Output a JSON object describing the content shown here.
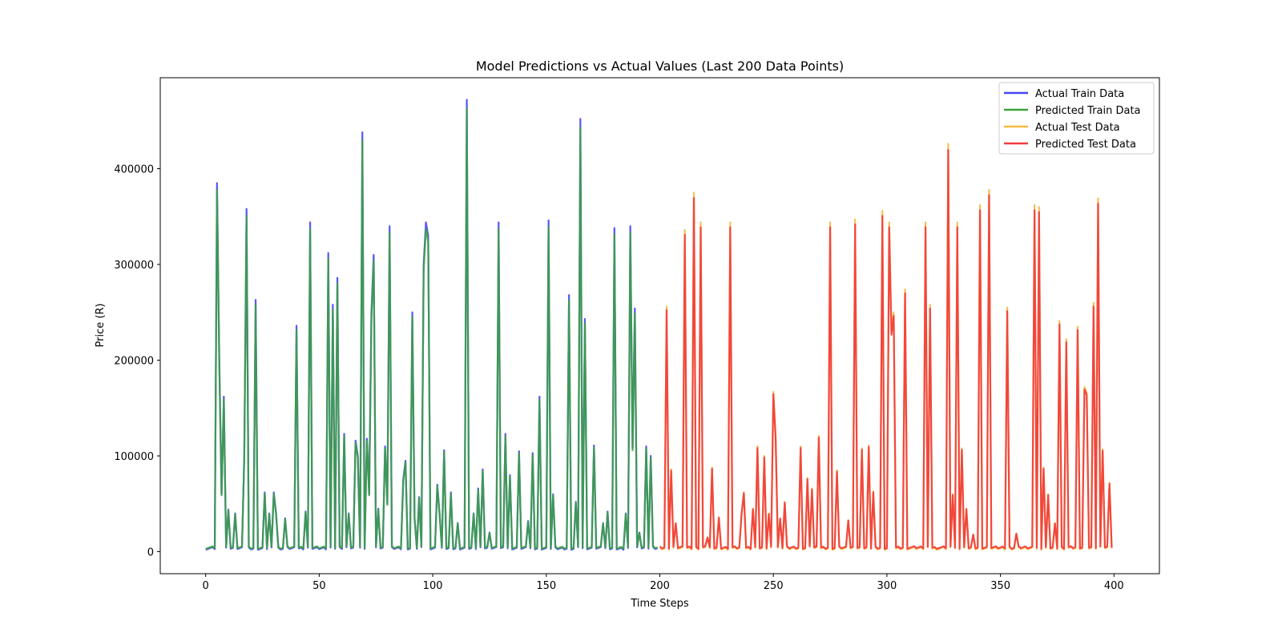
{
  "chart_data": {
    "type": "line",
    "title": "Model Predictions vs Actual Values (Last 200 Data Points)",
    "xlabel": "Time Steps",
    "ylabel": "Price (R)",
    "xlim": [
      -20,
      420
    ],
    "ylim": [
      -23000,
      495000
    ],
    "xticks": [
      0,
      50,
      100,
      150,
      200,
      250,
      300,
      350,
      400
    ],
    "yticks": [
      0,
      100000,
      200000,
      300000,
      400000
    ],
    "grid": false,
    "legend": "top-right",
    "train_peaks": [
      [
        5,
        385000
      ],
      [
        6,
        200000
      ],
      [
        7,
        60000
      ],
      [
        8,
        162000
      ],
      [
        10,
        44000
      ],
      [
        13,
        40000
      ],
      [
        17,
        100000
      ],
      [
        18,
        358000
      ],
      [
        22,
        263000
      ],
      [
        26,
        62000
      ],
      [
        28,
        40000
      ],
      [
        30,
        62000
      ],
      [
        31,
        40000
      ],
      [
        35,
        35000
      ],
      [
        40,
        236000
      ],
      [
        44,
        42000
      ],
      [
        46,
        344000
      ],
      [
        54,
        312000
      ],
      [
        56,
        258000
      ],
      [
        58,
        286000
      ],
      [
        61,
        123000
      ],
      [
        63,
        40000
      ],
      [
        66,
        116000
      ],
      [
        67,
        100000
      ],
      [
        69,
        438000
      ],
      [
        71,
        118000
      ],
      [
        72,
        60000
      ],
      [
        73,
        250000
      ],
      [
        74,
        310000
      ],
      [
        76,
        45000
      ],
      [
        79,
        110000
      ],
      [
        80,
        50000
      ],
      [
        81,
        340000
      ],
      [
        87,
        75000
      ],
      [
        88,
        95000
      ],
      [
        91,
        250000
      ],
      [
        92,
        35000
      ],
      [
        94,
        57000
      ],
      [
        96,
        300000
      ],
      [
        97,
        344000
      ],
      [
        98,
        330000
      ],
      [
        102,
        70000
      ],
      [
        103,
        40000
      ],
      [
        105,
        106000
      ],
      [
        108,
        62000
      ],
      [
        111,
        30000
      ],
      [
        115,
        472000
      ],
      [
        118,
        40000
      ],
      [
        120,
        66000
      ],
      [
        122,
        86000
      ],
      [
        125,
        20000
      ],
      [
        129,
        344000
      ],
      [
        132,
        123000
      ],
      [
        134,
        80000
      ],
      [
        138,
        105000
      ],
      [
        142,
        32000
      ],
      [
        144,
        103000
      ],
      [
        147,
        162000
      ],
      [
        151,
        346000
      ],
      [
        153,
        60000
      ],
      [
        160,
        268000
      ],
      [
        163,
        52000
      ],
      [
        165,
        452000
      ],
      [
        167,
        243000
      ],
      [
        171,
        111000
      ],
      [
        175,
        30000
      ],
      [
        177,
        42000
      ],
      [
        180,
        338000
      ],
      [
        185,
        40000
      ],
      [
        187,
        340000
      ],
      [
        188,
        108000
      ],
      [
        189,
        254000
      ],
      [
        191,
        20000
      ],
      [
        194,
        110000
      ],
      [
        196,
        100000
      ]
    ],
    "test_peaks": [
      [
        203,
        256000
      ],
      [
        205,
        86000
      ],
      [
        207,
        30000
      ],
      [
        211,
        336000
      ],
      [
        215,
        375000
      ],
      [
        218,
        344000
      ],
      [
        221,
        15000
      ],
      [
        223,
        88000
      ],
      [
        226,
        36000
      ],
      [
        231,
        344000
      ],
      [
        236,
        40000
      ],
      [
        237,
        62000
      ],
      [
        241,
        45000
      ],
      [
        243,
        110000
      ],
      [
        246,
        100000
      ],
      [
        248,
        40000
      ],
      [
        250,
        167000
      ],
      [
        251,
        120000
      ],
      [
        253,
        35000
      ],
      [
        255,
        52000
      ],
      [
        262,
        110000
      ],
      [
        265,
        77000
      ],
      [
        267,
        66000
      ],
      [
        270,
        121000
      ],
      [
        275,
        344000
      ],
      [
        278,
        85000
      ],
      [
        283,
        33000
      ],
      [
        286,
        347000
      ],
      [
        289,
        108000
      ],
      [
        292,
        111000
      ],
      [
        294,
        63000
      ],
      [
        298,
        356000
      ],
      [
        301,
        344000
      ],
      [
        302,
        230000
      ],
      [
        303,
        250000
      ],
      [
        308,
        274000
      ],
      [
        317,
        344000
      ],
      [
        319,
        258000
      ],
      [
        327,
        426000
      ],
      [
        329,
        60000
      ],
      [
        331,
        344000
      ],
      [
        333,
        108000
      ],
      [
        335,
        45000
      ],
      [
        338,
        18000
      ],
      [
        341,
        362000
      ],
      [
        345,
        378000
      ],
      [
        353,
        255000
      ],
      [
        357,
        19000
      ],
      [
        365,
        362000
      ],
      [
        367,
        360000
      ],
      [
        369,
        88000
      ],
      [
        371,
        60000
      ],
      [
        374,
        30000
      ],
      [
        376,
        241000
      ],
      [
        379,
        222000
      ],
      [
        384,
        235000
      ],
      [
        387,
        172000
      ],
      [
        388,
        166000
      ],
      [
        391,
        260000
      ],
      [
        393,
        369000
      ],
      [
        395,
        107000
      ],
      [
        398,
        72000
      ]
    ],
    "series": [
      {
        "name": "Actual Train Data",
        "color": "#4646f2",
        "part": "train",
        "scale": 1.0
      },
      {
        "name": "Predicted Train Data",
        "color": "#3ba23b",
        "part": "train",
        "scale": 0.98
      },
      {
        "name": "Actual Test Data",
        "color": "#f5b942",
        "part": "test",
        "scale": 1.0
      },
      {
        "name": "Predicted Test Data",
        "color": "#f23a3a",
        "part": "test",
        "scale": 0.985
      }
    ]
  }
}
